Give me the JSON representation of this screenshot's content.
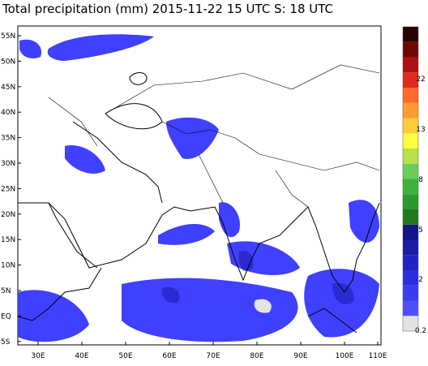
{
  "header": {
    "title": "Total precipitation (mm) 2015-11-22 15 UTC S: 18 UTC"
  },
  "map": {
    "lat_labels": [
      "55N",
      "50N",
      "45N",
      "40N",
      "35N",
      "30N",
      "25N",
      "20N",
      "15N",
      "10N",
      "5N",
      "EQ",
      "5S"
    ],
    "lon_labels": [
      "30E",
      "40E",
      "50E",
      "60E",
      "70E",
      "80E",
      "90E",
      "100E",
      "110E"
    ]
  },
  "colorbar": {
    "colors": [
      "#e3e3e3",
      "#4f4fff",
      "#3c3cf2",
      "#2d2de0",
      "#2323c4",
      "#1c1ca6",
      "#141488",
      "#1f7a1f",
      "#2d9a2d",
      "#3db33d",
      "#6ccc5a",
      "#b8e04a",
      "#ffff3c",
      "#ffcc3c",
      "#ff9a32",
      "#ff6a2a",
      "#e02a1e",
      "#b01010",
      "#700808",
      "#2a0000"
    ],
    "labels": [
      "0.2",
      "2",
      "5",
      "8",
      "13",
      "22"
    ]
  }
}
